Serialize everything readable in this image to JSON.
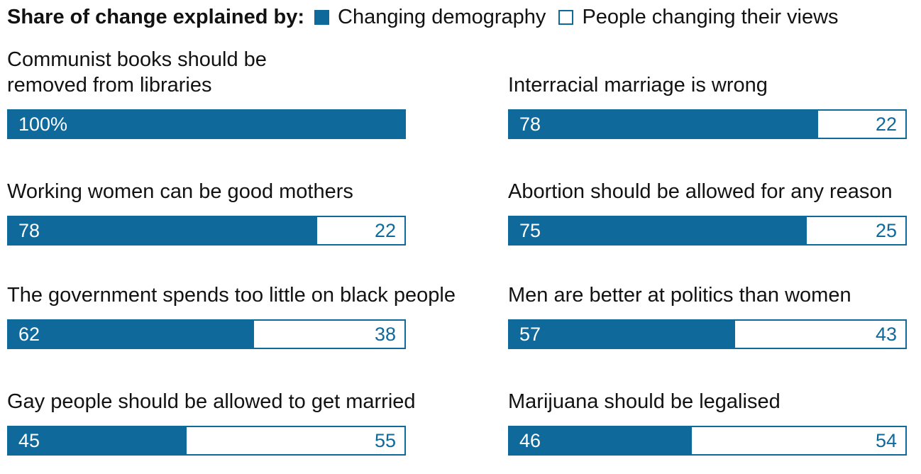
{
  "legend": {
    "title": "Share of change explained by:",
    "series_a": "Changing demography",
    "series_b": "People changing their views"
  },
  "colors": {
    "demography": "#0f699b",
    "views": "#ffffff",
    "views_text": "#0f699b"
  },
  "chart_data": {
    "type": "bar",
    "orientation": "horizontal",
    "stacked": true,
    "unit": "%",
    "series": [
      {
        "name": "Changing demography",
        "values": [
          100,
          78,
          78,
          75,
          62,
          57,
          45,
          46
        ]
      },
      {
        "name": "People changing their views",
        "values": [
          0,
          22,
          22,
          25,
          38,
          43,
          55,
          54
        ]
      }
    ],
    "categories": [
      "Communist books should be removed from libraries",
      "Interracial marriage is wrong",
      "Working women can be good mothers",
      "Abortion should be allowed for any reason",
      "The government spends too little on black people",
      "Men are better at politics than women",
      "Gay people should be allowed to get married",
      "Marijuana should be legalised"
    ],
    "panels": [
      {
        "title_lines": [
          "Communist books should be",
          "removed from libraries"
        ],
        "a": 100,
        "b": 0,
        "a_label": "100%",
        "b_label": ""
      },
      {
        "title_lines": [
          "Interracial marriage is wrong"
        ],
        "a": 78,
        "b": 22,
        "a_label": "78",
        "b_label": "22"
      },
      {
        "title_lines": [
          "Working women can be good mothers"
        ],
        "a": 78,
        "b": 22,
        "a_label": "78",
        "b_label": "22"
      },
      {
        "title_lines": [
          "Abortion should be allowed for any reason"
        ],
        "a": 75,
        "b": 25,
        "a_label": "75",
        "b_label": "25"
      },
      {
        "title_lines": [
          "The government spends too little on black people"
        ],
        "a": 62,
        "b": 38,
        "a_label": "62",
        "b_label": "38"
      },
      {
        "title_lines": [
          "Men are better at politics than women"
        ],
        "a": 57,
        "b": 43,
        "a_label": "57",
        "b_label": "43"
      },
      {
        "title_lines": [
          "Gay people should be allowed to get married"
        ],
        "a": 45,
        "b": 55,
        "a_label": "45",
        "b_label": "55"
      },
      {
        "title_lines": [
          "Marijuana should be legalised"
        ],
        "a": 46,
        "b": 54,
        "a_label": "46",
        "b_label": "54"
      }
    ]
  }
}
